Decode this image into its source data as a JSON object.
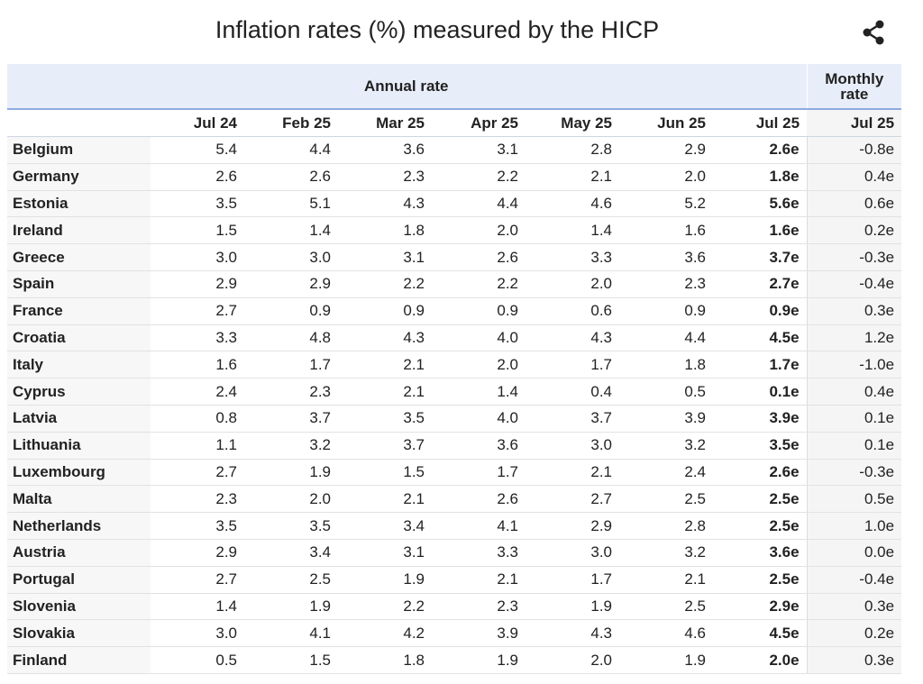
{
  "title": "Inflation rates (%) measured by the HICP",
  "share_icon": "share-icon",
  "header": {
    "annual_label": "Annual rate",
    "monthly_label_line1": "Monthly",
    "monthly_label_line2": "rate"
  },
  "colors": {
    "header_bg": "#e8eef9",
    "header_border": "#8faadf",
    "country_col_bg": "#f7f7f7",
    "monthly_col_bg": "#f5f5f5"
  },
  "chart_data": {
    "type": "table",
    "title": "Inflation rates (%) measured by the HICP",
    "column_groups": [
      {
        "label": "Annual rate",
        "columns": [
          "Jul 24",
          "Feb 25",
          "Mar 25",
          "Apr 25",
          "May 25",
          "Jun 25",
          "Jul 25"
        ]
      },
      {
        "label": "Monthly rate",
        "columns": [
          "Jul 25"
        ]
      }
    ],
    "columns": [
      "Jul 24",
      "Feb 25",
      "Mar 25",
      "Apr 25",
      "May 25",
      "Jun 25",
      "Jul 25",
      "Jul 25"
    ],
    "rows": [
      {
        "country": "Belgium",
        "values": [
          "5.4",
          "4.4",
          "3.6",
          "3.1",
          "2.8",
          "2.9",
          "2.6e",
          "-0.8e"
        ]
      },
      {
        "country": "Germany",
        "values": [
          "2.6",
          "2.6",
          "2.3",
          "2.2",
          "2.1",
          "2.0",
          "1.8e",
          "0.4e"
        ]
      },
      {
        "country": "Estonia",
        "values": [
          "3.5",
          "5.1",
          "4.3",
          "4.4",
          "4.6",
          "5.2",
          "5.6e",
          "0.6e"
        ]
      },
      {
        "country": "Ireland",
        "values": [
          "1.5",
          "1.4",
          "1.8",
          "2.0",
          "1.4",
          "1.6",
          "1.6e",
          "0.2e"
        ]
      },
      {
        "country": "Greece",
        "values": [
          "3.0",
          "3.0",
          "3.1",
          "2.6",
          "3.3",
          "3.6",
          "3.7e",
          "-0.3e"
        ]
      },
      {
        "country": "Spain",
        "values": [
          "2.9",
          "2.9",
          "2.2",
          "2.2",
          "2.0",
          "2.3",
          "2.7e",
          "-0.4e"
        ]
      },
      {
        "country": "France",
        "values": [
          "2.7",
          "0.9",
          "0.9",
          "0.9",
          "0.6",
          "0.9",
          "0.9e",
          "0.3e"
        ]
      },
      {
        "country": "Croatia",
        "values": [
          "3.3",
          "4.8",
          "4.3",
          "4.0",
          "4.3",
          "4.4",
          "4.5e",
          "1.2e"
        ]
      },
      {
        "country": "Italy",
        "values": [
          "1.6",
          "1.7",
          "2.1",
          "2.0",
          "1.7",
          "1.8",
          "1.7e",
          "-1.0e"
        ]
      },
      {
        "country": "Cyprus",
        "values": [
          "2.4",
          "2.3",
          "2.1",
          "1.4",
          "0.4",
          "0.5",
          "0.1e",
          "0.4e"
        ]
      },
      {
        "country": "Latvia",
        "values": [
          "0.8",
          "3.7",
          "3.5",
          "4.0",
          "3.7",
          "3.9",
          "3.9e",
          "0.1e"
        ]
      },
      {
        "country": "Lithuania",
        "values": [
          "1.1",
          "3.2",
          "3.7",
          "3.6",
          "3.0",
          "3.2",
          "3.5e",
          "0.1e"
        ]
      },
      {
        "country": "Luxembourg",
        "values": [
          "2.7",
          "1.9",
          "1.5",
          "1.7",
          "2.1",
          "2.4",
          "2.6e",
          "-0.3e"
        ]
      },
      {
        "country": "Malta",
        "values": [
          "2.3",
          "2.0",
          "2.1",
          "2.6",
          "2.7",
          "2.5",
          "2.5e",
          "0.5e"
        ]
      },
      {
        "country": "Netherlands",
        "values": [
          "3.5",
          "3.5",
          "3.4",
          "4.1",
          "2.9",
          "2.8",
          "2.5e",
          "1.0e"
        ]
      },
      {
        "country": "Austria",
        "values": [
          "2.9",
          "3.4",
          "3.1",
          "3.3",
          "3.0",
          "3.2",
          "3.6e",
          "0.0e"
        ]
      },
      {
        "country": "Portugal",
        "values": [
          "2.7",
          "2.5",
          "1.9",
          "2.1",
          "1.7",
          "2.1",
          "2.5e",
          "-0.4e"
        ]
      },
      {
        "country": "Slovenia",
        "values": [
          "1.4",
          "1.9",
          "2.2",
          "2.3",
          "1.9",
          "2.5",
          "2.9e",
          "0.3e"
        ]
      },
      {
        "country": "Slovakia",
        "values": [
          "3.0",
          "4.1",
          "4.2",
          "3.9",
          "4.3",
          "4.6",
          "4.5e",
          "0.2e"
        ]
      },
      {
        "country": "Finland",
        "values": [
          "0.5",
          "1.5",
          "1.8",
          "1.9",
          "2.0",
          "1.9",
          "2.0e",
          "0.3e"
        ]
      }
    ]
  }
}
